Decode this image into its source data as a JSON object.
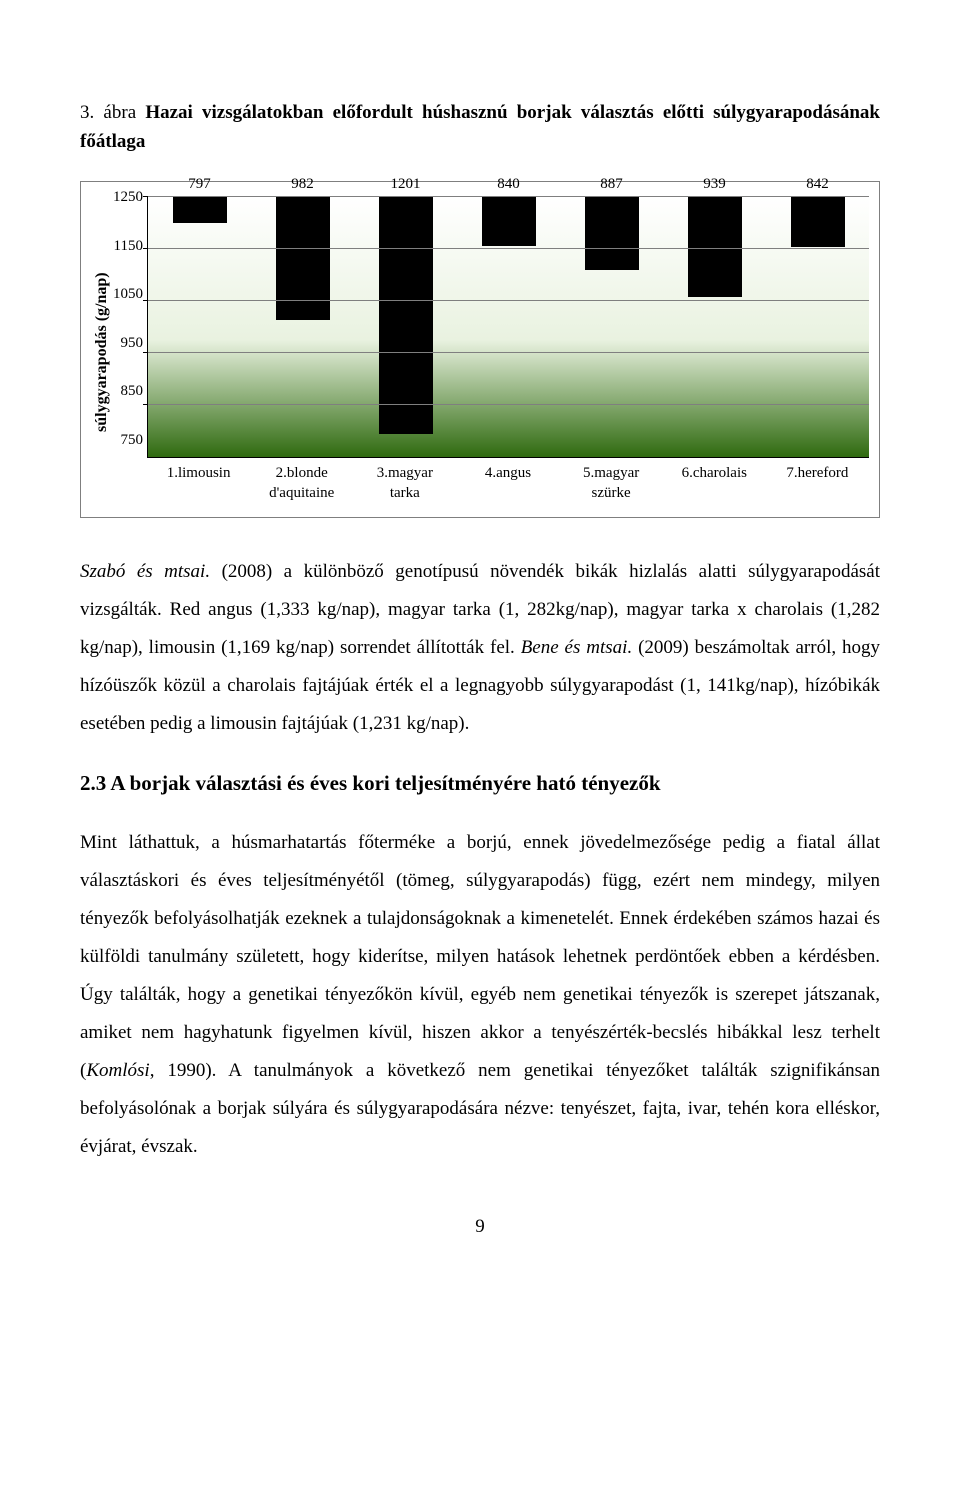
{
  "figure_caption": {
    "num": "3. ábra",
    "text": " Hazai vizsgálatokban előfordult húshasznú borjak választás előtti súlygyarapodásának főátlaga"
  },
  "chart": {
    "type": "bar",
    "ylabel": "súlygyarapodás (g/nap)",
    "ymin": 750,
    "ymax": 1250,
    "ytick_step": 100,
    "yticks": [
      "1250",
      "1150",
      "1050",
      "950",
      "850",
      "750"
    ],
    "grid_color": "#7f7f7f",
    "bg_from": "#ffffff",
    "bg_to": "#2f6a0f",
    "bar_color": "#000000",
    "bars": [
      {
        "label": "1.limousin",
        "value": 797,
        "value_str": "797"
      },
      {
        "label": "2.blonde d'aquitaine",
        "value": 982,
        "value_str": "982"
      },
      {
        "label": "3.magyar tarka",
        "value": 1201,
        "value_str": "1201"
      },
      {
        "label": "4.angus",
        "value": 840,
        "value_str": "840"
      },
      {
        "label": "5.magyar szürke",
        "value": 887,
        "value_str": "887"
      },
      {
        "label": "6.charolais",
        "value": 939,
        "value_str": "939"
      },
      {
        "label": "7.hereford",
        "value": 842,
        "value_str": "842"
      }
    ]
  },
  "para1": {
    "i1": "Szabó és mtsai.",
    "t1": " (2008) a különböző genotípusú növendék bikák hizlalás alatti súlygyarapodását vizsgálták. Red angus (1,333 kg/nap), magyar tarka (1, 282kg/nap), magyar tarka x charolais (1,282 kg/nap), limousin (1,169 kg/nap) sorrendet állították fel. ",
    "i2": "Bene és mtsai.",
    "t2": " (2009) beszámoltak arról, hogy hízóüszők közül a charolais fajtájúak érték el a legnagyobb súlygyarapodást (1, 141kg/nap), hízóbikák esetében pedig a limousin fajtájúak (1,231 kg/nap)."
  },
  "section": "2.3   A borjak választási és éves kori teljesítményére ható tényezők",
  "para2": {
    "t1": "Mint láthattuk, a húsmarhatartás főterméke a borjú, ennek jövedelmezősége pedig a fiatal állat választáskori és éves teljesítményétől (tömeg, súlygyarapodás) függ, ezért nem mindegy, milyen tényezők befolyásolhatják ezeknek a tulajdonságoknak a kimenetelét. Ennek érdekében számos hazai és külföldi tanulmány született, hogy kiderítse, milyen hatások lehetnek perdöntőek ebben a kérdésben. Úgy találták, hogy a genetikai tényezőkön kívül, egyéb nem genetikai tényezők is szerepet játszanak, amiket nem hagyhatunk figyelmen kívül, hiszen akkor a tenyészérték-becslés hibákkal lesz terhelt (",
    "i1": "Komlósi",
    "t2": ", 1990). A tanulmányok a következő nem genetikai tényezőket találták szignifikánsan befolyásolónak a borjak súlyára és súlygyarapodására nézve: tenyészet, fajta, ivar, tehén kora elléskor, évjárat, évszak."
  },
  "page": "9"
}
